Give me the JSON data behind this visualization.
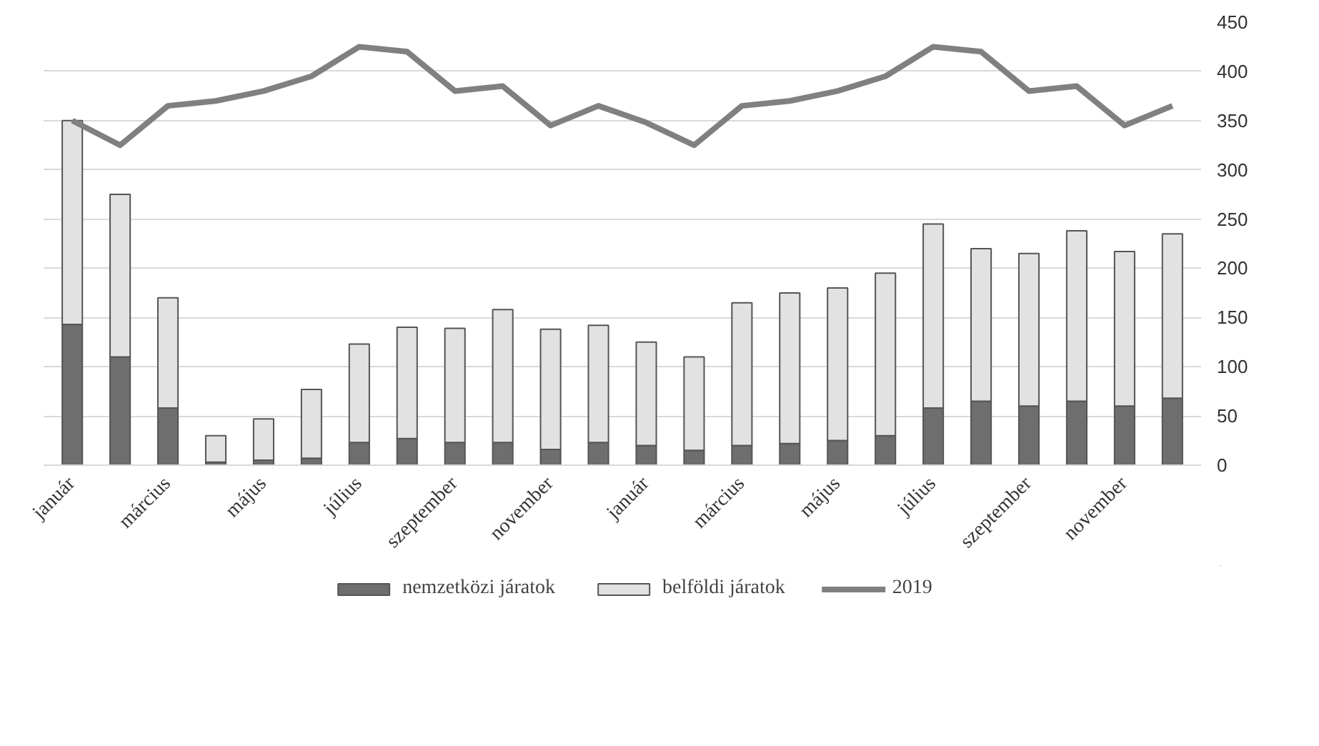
{
  "chart_data": {
    "type": "bar",
    "stacked": true,
    "categories": [
      "január",
      null,
      "március",
      null,
      "május",
      null,
      "július",
      null,
      "szeptember",
      null,
      "november",
      null,
      "január",
      null,
      "március",
      null,
      "május",
      null,
      "július",
      null,
      "szeptember",
      null,
      "november",
      null
    ],
    "series": [
      {
        "name": "nemzetközi járatok",
        "color": "#6e6e6e",
        "values": [
          143,
          110,
          58,
          3,
          5,
          7,
          23,
          27,
          23,
          23,
          16,
          23,
          20,
          15,
          20,
          22,
          25,
          30,
          58,
          65,
          60,
          65,
          60,
          68
        ]
      },
      {
        "name": "belföldi járatok",
        "color": "#e2e2e2",
        "values": [
          207,
          165,
          112,
          27,
          42,
          70,
          100,
          113,
          116,
          135,
          122,
          119,
          105,
          95,
          145,
          153,
          155,
          165,
          187,
          155,
          155,
          173,
          157,
          167
        ]
      },
      {
        "name": "2019",
        "type": "line",
        "color": "#808080",
        "values": [
          350,
          325,
          365,
          370,
          380,
          395,
          425,
          420,
          380,
          385,
          345,
          365,
          348,
          325,
          365,
          370,
          380,
          395,
          425,
          420,
          380,
          385,
          345,
          365
        ]
      }
    ],
    "ylim": [
      0,
      450
    ],
    "yticks": [
      0,
      50,
      100,
      150,
      200,
      250,
      300,
      350,
      400,
      450
    ],
    "grid": "y",
    "legend": "bottom"
  }
}
